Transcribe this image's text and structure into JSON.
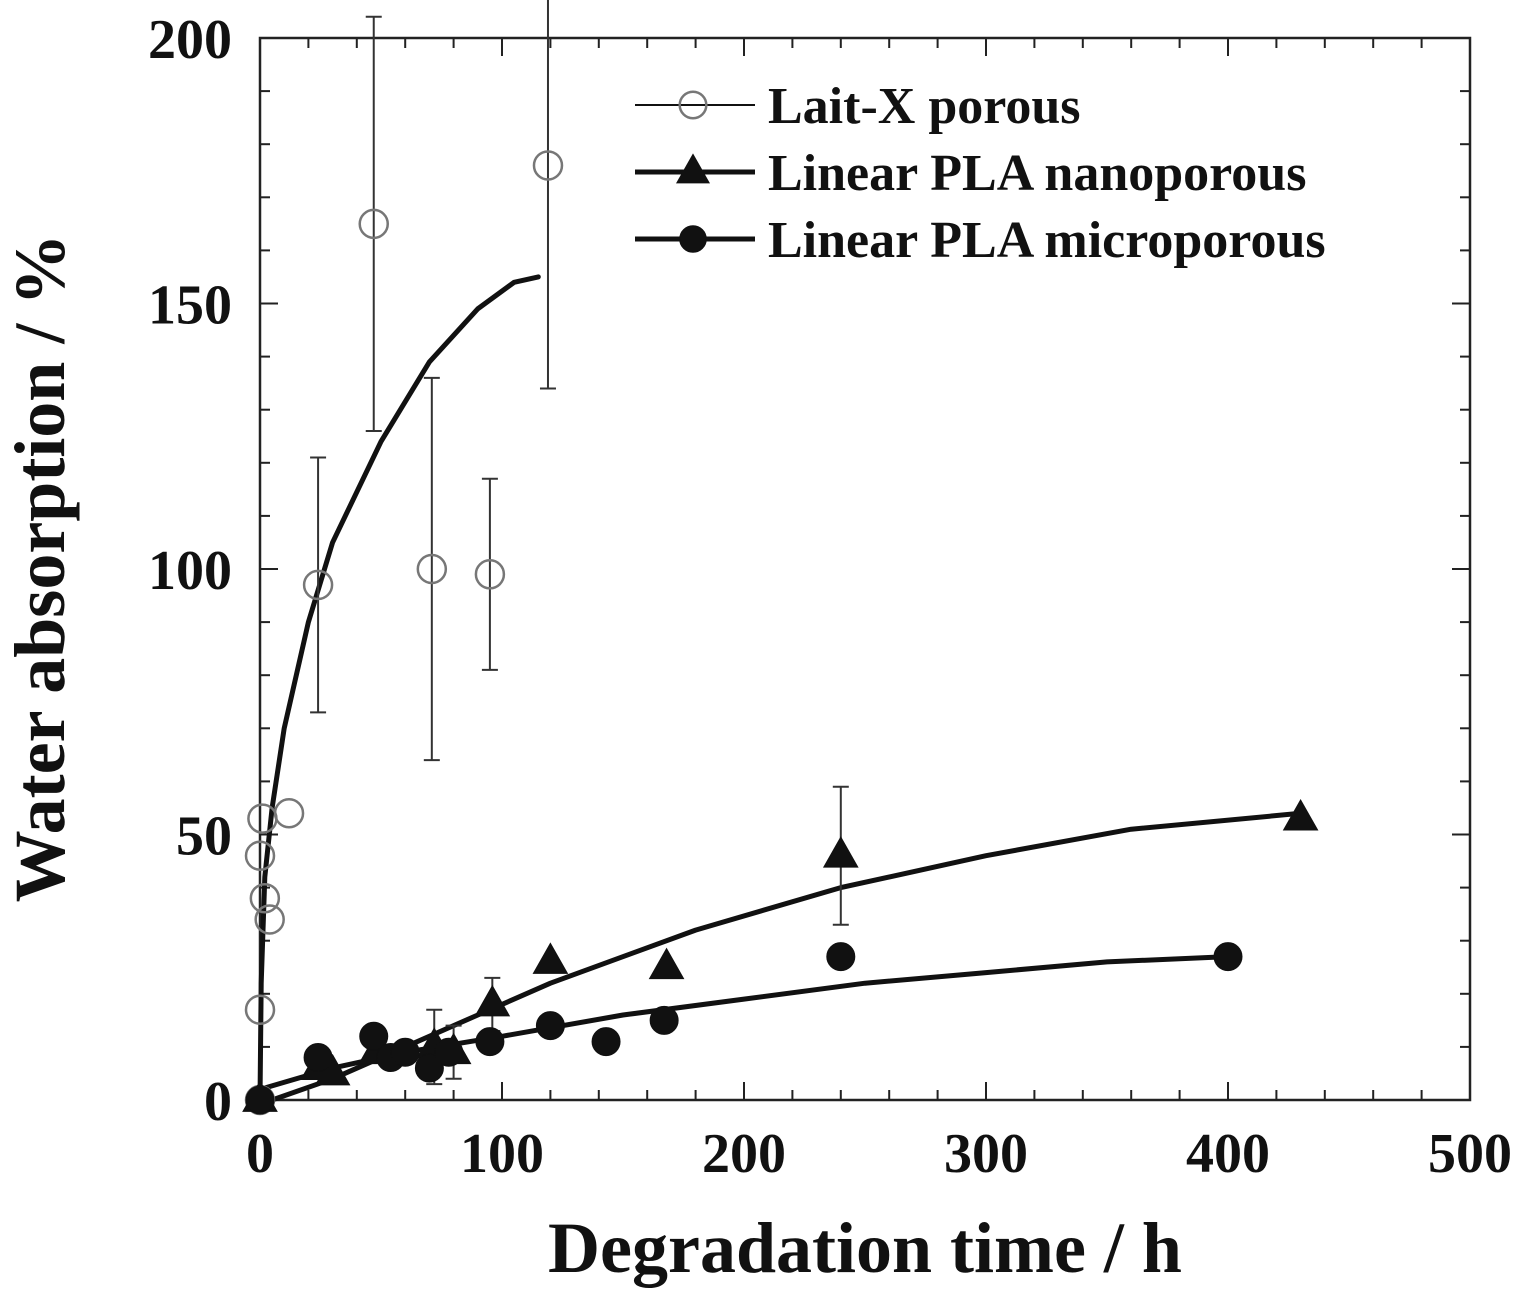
{
  "chart_data": {
    "type": "scatter",
    "xlabel": "Degradation time / h",
    "ylabel": "Water absorption / %",
    "xlim": [
      0,
      500
    ],
    "ylim": [
      0,
      200
    ],
    "x_ticks": [
      0,
      100,
      200,
      300,
      400,
      500
    ],
    "y_ticks": [
      0,
      50,
      100,
      150,
      200
    ],
    "x_minor_step": 20,
    "y_minor_step": 10,
    "grid": false,
    "legend_position": "top-right",
    "series": [
      {
        "name": "Lait-X porous",
        "marker": "open-circle",
        "points": [
          {
            "x": 0,
            "y": 0
          },
          {
            "x": 0,
            "y": 17
          },
          {
            "x": 0,
            "y": 46
          },
          {
            "x": 2,
            "y": 38
          },
          {
            "x": 1,
            "y": 53
          },
          {
            "x": 4,
            "y": 34
          },
          {
            "x": 12,
            "y": 54
          },
          {
            "x": 24,
            "y": 97,
            "err": 24
          },
          {
            "x": 47,
            "y": 165,
            "err": 39
          },
          {
            "x": 71,
            "y": 100,
            "err": 36
          },
          {
            "x": 95,
            "y": 99,
            "err": 18
          },
          {
            "x": 119,
            "y": 176,
            "err": 42
          }
        ],
        "fit": [
          [
            0,
            0
          ],
          [
            0.5,
            22
          ],
          [
            2,
            42
          ],
          [
            5,
            55
          ],
          [
            10,
            70
          ],
          [
            20,
            90
          ],
          [
            30,
            105
          ],
          [
            50,
            124
          ],
          [
            70,
            139
          ],
          [
            90,
            149
          ],
          [
            105,
            154
          ],
          [
            115,
            155
          ]
        ]
      },
      {
        "name": "Linear PLA nanoporous",
        "marker": "filled-triangle",
        "points": [
          {
            "x": 0,
            "y": 0
          },
          {
            "x": 24,
            "y": 6
          },
          {
            "x": 30,
            "y": 5
          },
          {
            "x": 48,
            "y": 9
          },
          {
            "x": 72,
            "y": 10,
            "err": 7
          },
          {
            "x": 80,
            "y": 9,
            "err": 5
          },
          {
            "x": 96,
            "y": 18,
            "err": 5
          },
          {
            "x": 120,
            "y": 26
          },
          {
            "x": 168,
            "y": 25
          },
          {
            "x": 240,
            "y": 46,
            "err": 13
          },
          {
            "x": 430,
            "y": 53
          }
        ],
        "fit": [
          [
            5,
            0
          ],
          [
            30,
            4
          ],
          [
            60,
            10
          ],
          [
            90,
            16
          ],
          [
            120,
            22
          ],
          [
            180,
            32
          ],
          [
            240,
            40
          ],
          [
            300,
            46
          ],
          [
            360,
            51
          ],
          [
            430,
            54
          ]
        ]
      },
      {
        "name": "Linear PLA microporous",
        "marker": "filled-circle",
        "points": [
          {
            "x": 0,
            "y": 0
          },
          {
            "x": 24,
            "y": 8
          },
          {
            "x": 47,
            "y": 12
          },
          {
            "x": 54,
            "y": 8
          },
          {
            "x": 60,
            "y": 9
          },
          {
            "x": 70,
            "y": 6
          },
          {
            "x": 78,
            "y": 9
          },
          {
            "x": 95,
            "y": 11
          },
          {
            "x": 120,
            "y": 14
          },
          {
            "x": 143,
            "y": 11
          },
          {
            "x": 167,
            "y": 15
          },
          {
            "x": 240,
            "y": 27
          },
          {
            "x": 400,
            "y": 27
          }
        ],
        "fit": [
          [
            0,
            2
          ],
          [
            30,
            6
          ],
          [
            60,
            9
          ],
          [
            100,
            12
          ],
          [
            150,
            16
          ],
          [
            200,
            19
          ],
          [
            250,
            22
          ],
          [
            300,
            24
          ],
          [
            350,
            26
          ],
          [
            400,
            27
          ]
        ]
      }
    ]
  }
}
